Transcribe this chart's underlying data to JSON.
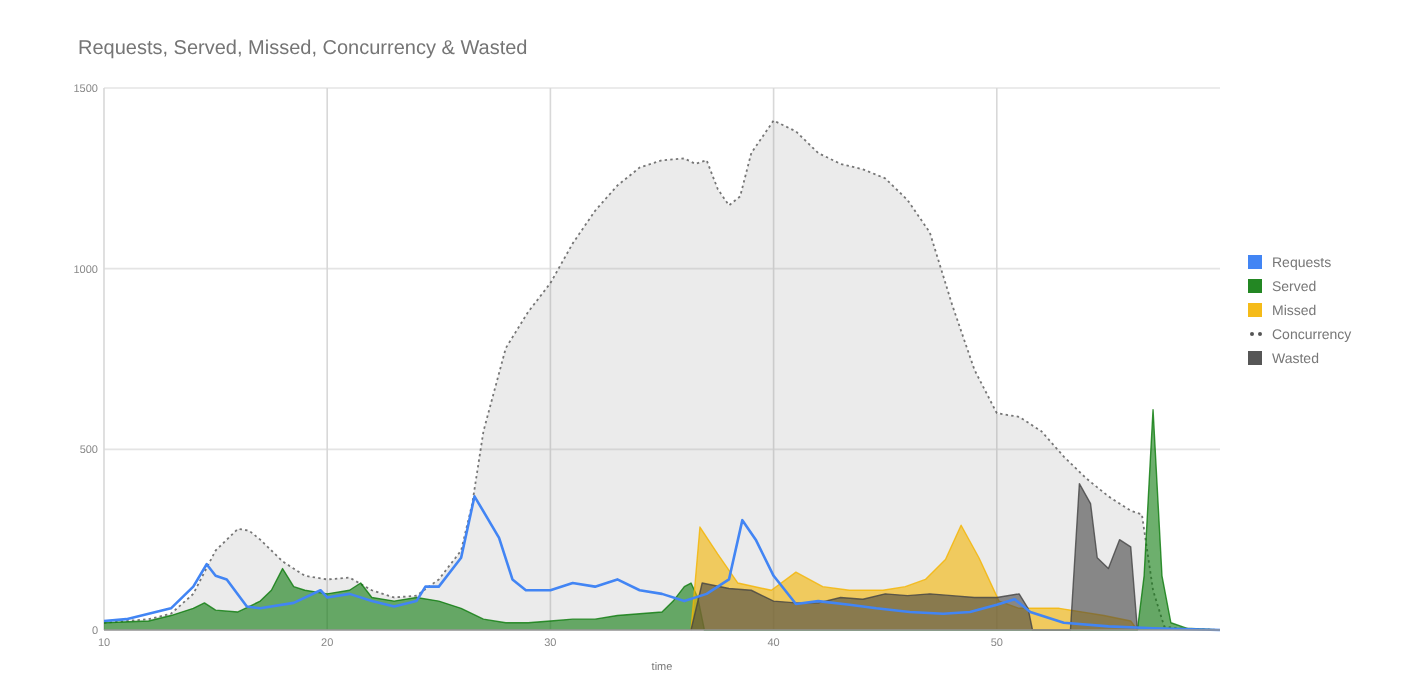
{
  "chart_data": {
    "type": "area",
    "title": "Requests, Served, Missed, Concurrency & Wasted",
    "xlabel": "time",
    "xlim": [
      10,
      60
    ],
    "xticks": [
      10,
      20,
      30,
      40,
      50
    ],
    "ylim": [
      0,
      1500
    ],
    "yticks": [
      0,
      500,
      1000,
      1500
    ],
    "grid": true,
    "legend": "right",
    "series": [
      {
        "name": "Requests",
        "type": "line",
        "color": "#4285f4",
        "x": [
          10,
          11,
          12,
          13,
          14,
          14.6,
          15,
          15.5,
          16.4,
          17,
          18.5,
          19.7,
          20,
          21,
          22,
          23,
          24,
          24.4,
          25,
          26,
          26.6,
          27.7,
          28.3,
          28.9,
          30,
          31,
          32,
          33,
          34,
          35,
          36,
          37,
          38,
          38.6,
          39.2,
          40,
          41,
          42,
          43.4,
          44.6,
          46.1,
          47.6,
          48.8,
          50,
          50.8,
          51.5,
          53,
          55,
          57,
          60
        ],
        "values": [
          25,
          30,
          45,
          60,
          120,
          182,
          150,
          140,
          65,
          60,
          75,
          110,
          90,
          100,
          80,
          65,
          80,
          120,
          120,
          200,
          370,
          255,
          140,
          110,
          110,
          130,
          120,
          140,
          110,
          100,
          80,
          100,
          140,
          304,
          250,
          150,
          72,
          80,
          70,
          60,
          50,
          45,
          50,
          70,
          85,
          50,
          20,
          10,
          5,
          0
        ]
      },
      {
        "name": "Served",
        "color": "#0b7a0b",
        "x": [
          10,
          12,
          13,
          14,
          14.5,
          15,
          16,
          17,
          17.5,
          18,
          18.5,
          19,
          20,
          21,
          21.5,
          22,
          23,
          24,
          25,
          26,
          27,
          28,
          29,
          30,
          31,
          32,
          33,
          34,
          35,
          35.5,
          36,
          36.3,
          36.6,
          36.9,
          56.3,
          56.6,
          57,
          57.4,
          57.8,
          58.5,
          60
        ],
        "values": [
          20,
          25,
          40,
          60,
          75,
          55,
          50,
          80,
          110,
          170,
          120,
          110,
          100,
          110,
          130,
          90,
          80,
          90,
          80,
          60,
          30,
          20,
          20,
          25,
          30,
          30,
          40,
          45,
          50,
          80,
          120,
          130,
          90,
          0,
          0,
          150,
          610,
          150,
          20,
          5,
          0
        ]
      },
      {
        "name": "Missed",
        "color": "#f4b400",
        "x": [
          36.3,
          36.7,
          37.5,
          38.4,
          39.9,
          41,
          42.2,
          43.4,
          44.9,
          45.9,
          46.8,
          47.7,
          48.4,
          49.2,
          50.1,
          51,
          52.8,
          54.8,
          56,
          56.3
        ],
        "values": [
          0,
          285,
          210,
          130,
          110,
          160,
          120,
          110,
          110,
          120,
          140,
          195,
          290,
          200,
          80,
          60,
          60,
          40,
          25,
          0
        ]
      },
      {
        "name": "Concurrency",
        "line_style": "dotted",
        "color": "#555555",
        "x": [
          10,
          12,
          13,
          14,
          15,
          16,
          16.5,
          17,
          18,
          19,
          20,
          21,
          22,
          23,
          24,
          25,
          26,
          26.5,
          27,
          28,
          29,
          30,
          31,
          32,
          33,
          34,
          35,
          36,
          36.5,
          37,
          37.5,
          38,
          38.5,
          39,
          40,
          41,
          42,
          43,
          44,
          45,
          46,
          47,
          48,
          49,
          50,
          51,
          52,
          53,
          54,
          55,
          56,
          56.5,
          57,
          57.5,
          58,
          60
        ],
        "values": [
          20,
          30,
          45,
          100,
          220,
          280,
          275,
          250,
          190,
          150,
          140,
          145,
          110,
          90,
          95,
          140,
          220,
          350,
          550,
          780,
          880,
          960,
          1070,
          1160,
          1230,
          1280,
          1300,
          1305,
          1290,
          1300,
          1220,
          1175,
          1200,
          1320,
          1410,
          1380,
          1320,
          1290,
          1275,
          1250,
          1190,
          1100,
          900,
          720,
          600,
          590,
          550,
          480,
          420,
          370,
          330,
          320,
          110,
          10,
          5,
          0
        ]
      },
      {
        "name": "Wasted",
        "color": "#444444",
        "x": [
          36.3,
          36.8,
          38,
          39,
          40,
          41,
          42,
          43,
          44,
          45,
          46,
          47,
          48,
          49,
          50,
          51,
          51.4,
          51.6,
          53.3,
          53.7,
          54.2,
          54.5,
          55,
          55.5,
          56,
          56.3
        ],
        "values": [
          0,
          130,
          115,
          110,
          80,
          75,
          75,
          90,
          85,
          100,
          95,
          100,
          95,
          90,
          90,
          100,
          60,
          0,
          0,
          405,
          350,
          200,
          170,
          250,
          230,
          0
        ]
      }
    ]
  }
}
